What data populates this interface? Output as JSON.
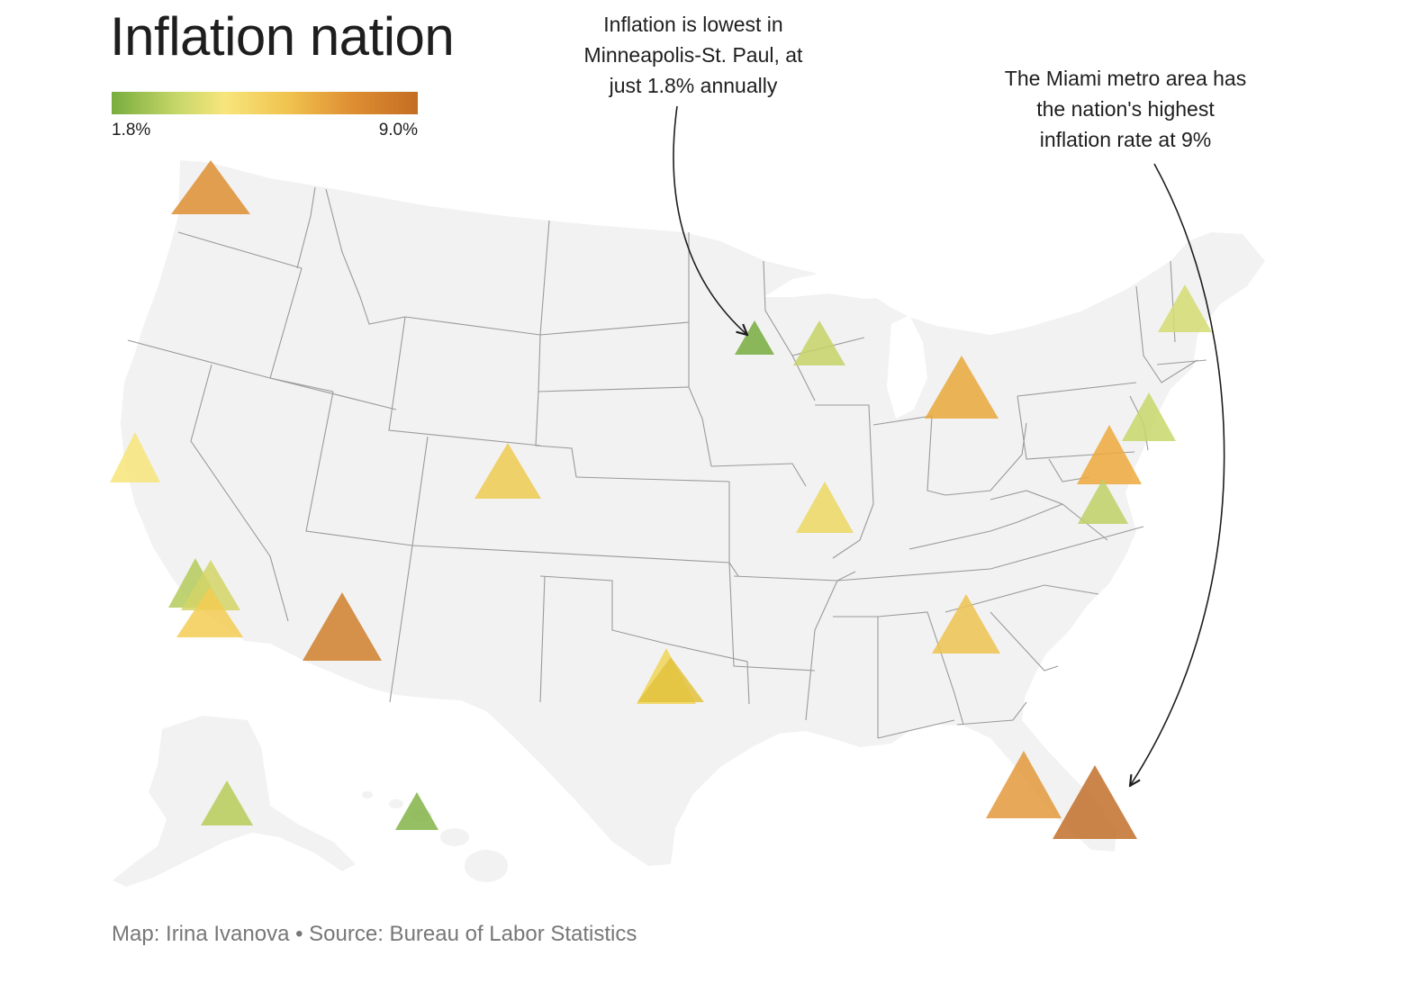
{
  "title": "Inflation nation",
  "legend": {
    "min_label": "1.8%",
    "max_label": "9.0%",
    "min_value": 1.8,
    "max_value": 9.0,
    "colors": [
      "#78ad3e",
      "#c9d86a",
      "#f7e57b",
      "#f0c24e",
      "#df8f33",
      "#c36d22"
    ]
  },
  "annotations": {
    "lowest": "Inflation is lowest in\nMinneapolis-St. Paul, at\njust 1.8% annually",
    "highest": "The Miami metro area has\nthe nation's highest\ninflation rate at 9%"
  },
  "source": "Map: Irina Ivanova • Source: Bureau of Labor Statistics",
  "map_colors": {
    "land": "#f2f2f2",
    "border": "#9a9a9a"
  }
}
